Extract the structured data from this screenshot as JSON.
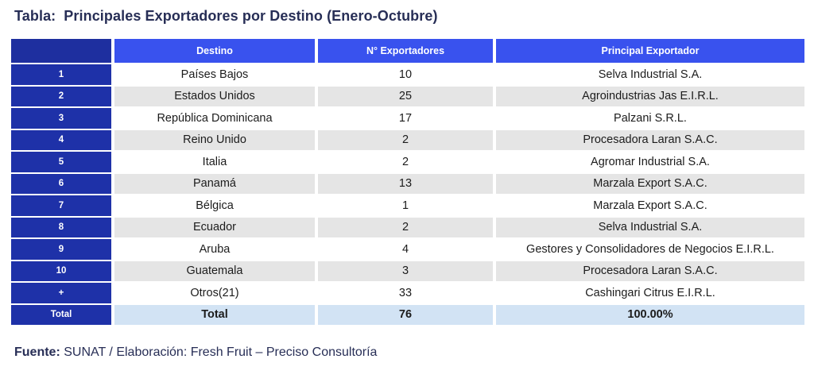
{
  "title": {
    "label": "Tabla:",
    "text": "Principales Exportadores por Destino (Enero-Octubre)"
  },
  "table": {
    "headers": [
      "",
      "Destino",
      "N° Exportadores",
      "Principal Exportador"
    ],
    "rows": [
      {
        "index": "1",
        "destino": "Países Bajos",
        "exportadores": "10",
        "principal": "Selva Industrial S.A."
      },
      {
        "index": "2",
        "destino": "Estados Unidos",
        "exportadores": "25",
        "principal": "Agroindustrias Jas E.I.R.L."
      },
      {
        "index": "3",
        "destino": "República Dominicana",
        "exportadores": "17",
        "principal": "Palzani S.R.L."
      },
      {
        "index": "4",
        "destino": "Reino Unido",
        "exportadores": "2",
        "principal": "Procesadora Laran S.A.C."
      },
      {
        "index": "5",
        "destino": "Italia",
        "exportadores": "2",
        "principal": "Agromar Industrial S.A."
      },
      {
        "index": "6",
        "destino": "Panamá",
        "exportadores": "13",
        "principal": "Marzala Export S.A.C."
      },
      {
        "index": "7",
        "destino": "Bélgica",
        "exportadores": "1",
        "principal": "Marzala Export S.A.C."
      },
      {
        "index": "8",
        "destino": "Ecuador",
        "exportadores": "2",
        "principal": "Selva Industrial S.A."
      },
      {
        "index": "9",
        "destino": "Aruba",
        "exportadores": "4",
        "principal": "Gestores y Consolidadores de Negocios E.I.R.L."
      },
      {
        "index": "10",
        "destino": "Guatemala",
        "exportadores": "3",
        "principal": "Procesadora Laran S.A.C."
      },
      {
        "index": "+",
        "destino": "Otros(21)",
        "exportadores": "33",
        "principal": "Cashingari Citrus E.I.R.L."
      }
    ],
    "total_row": {
      "index": "Total",
      "destino": "Total",
      "exportadores": "76",
      "principal": "100.00%"
    }
  },
  "footer": {
    "source_label": "Fuente:",
    "source_text": " SUNAT / Elaboración: Fresh Fruit – Preciso Consultoría"
  },
  "colors": {
    "title_text": "#272e56",
    "header_blue": "#3952ee",
    "index_blue": "#1e31a8",
    "header_index_blue": "#1e2f9f",
    "gray_row": "#e5e5e5",
    "total_row": "#d2e3f4",
    "body_text": "#1c1c1c"
  }
}
